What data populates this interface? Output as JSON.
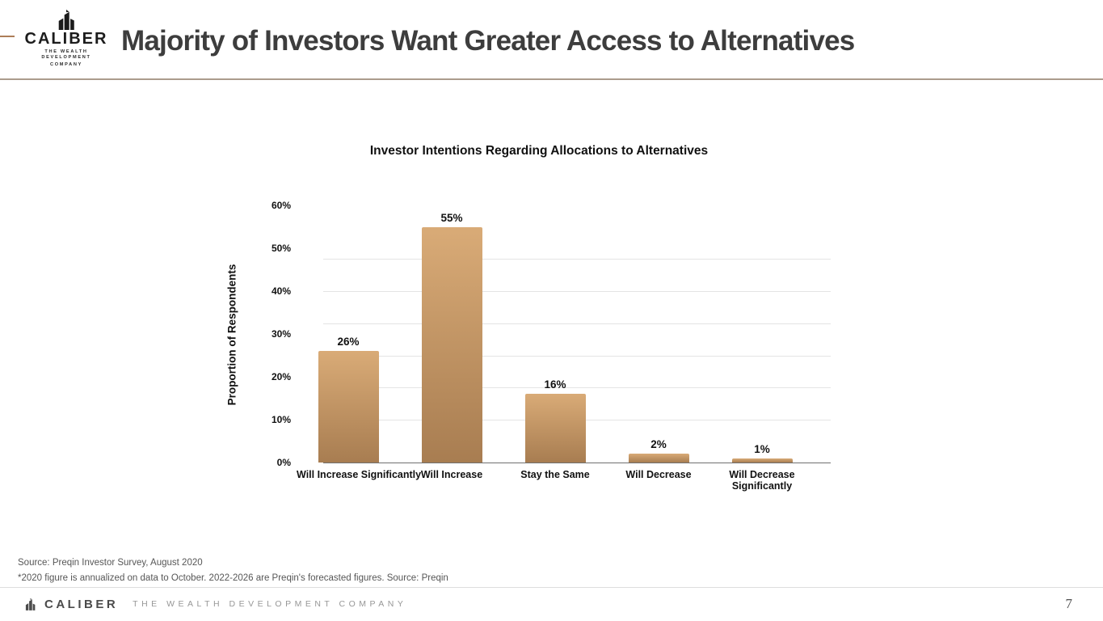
{
  "header": {
    "logo": {
      "name": "CALIBER",
      "tagline_line1": "THE WEALTH DEVELOPMENT",
      "tagline_line2": "COMPANY"
    },
    "title": "Majority of Investors Want Greater Access to Alternatives"
  },
  "chart_data": {
    "type": "bar",
    "title": "Investor Intentions Regarding Allocations to Alternatives",
    "xlabel": "",
    "ylabel": "Proportion of Respondents",
    "categories": [
      "Will Increase Significantly",
      "Will Increase",
      "Stay the Same",
      "Will Decrease",
      "Will Decrease\nSignificantly"
    ],
    "values": [
      26,
      55,
      16,
      2,
      1
    ],
    "value_labels": [
      "26%",
      "55%",
      "16%",
      "2%",
      "1%"
    ],
    "ylim": [
      0,
      60
    ],
    "ytick_values": [
      0,
      10,
      20,
      30,
      40,
      50,
      60
    ],
    "ytick_labels": [
      "0%",
      "10%",
      "20%",
      "30%",
      "40%",
      "50%",
      "60%"
    ],
    "gridline_values": [
      10,
      17.5,
      25,
      32.5,
      40,
      47.5
    ],
    "grid": "horizontal",
    "legend": "none",
    "bar_color_top": "#d9ab77",
    "bar_color_bottom": "#a87d51"
  },
  "footnotes": {
    "line1": "Source: Preqin Investor Survey, August 2020",
    "line2": "*2020 figure is annualized on data to October. 2022-2026 are Preqin's forecasted figures. Source: Preqin"
  },
  "footer": {
    "brand": "CALIBER",
    "tagline": "THE WEALTH DEVELOPMENT COMPANY",
    "page_number": "7"
  },
  "colors": {
    "accent_dash": "#ad7d58",
    "header_divider": "#ab9c8d",
    "gridline": "#e4e4e4",
    "axis_line": "#707070",
    "title_text": "#3d3d3d"
  }
}
